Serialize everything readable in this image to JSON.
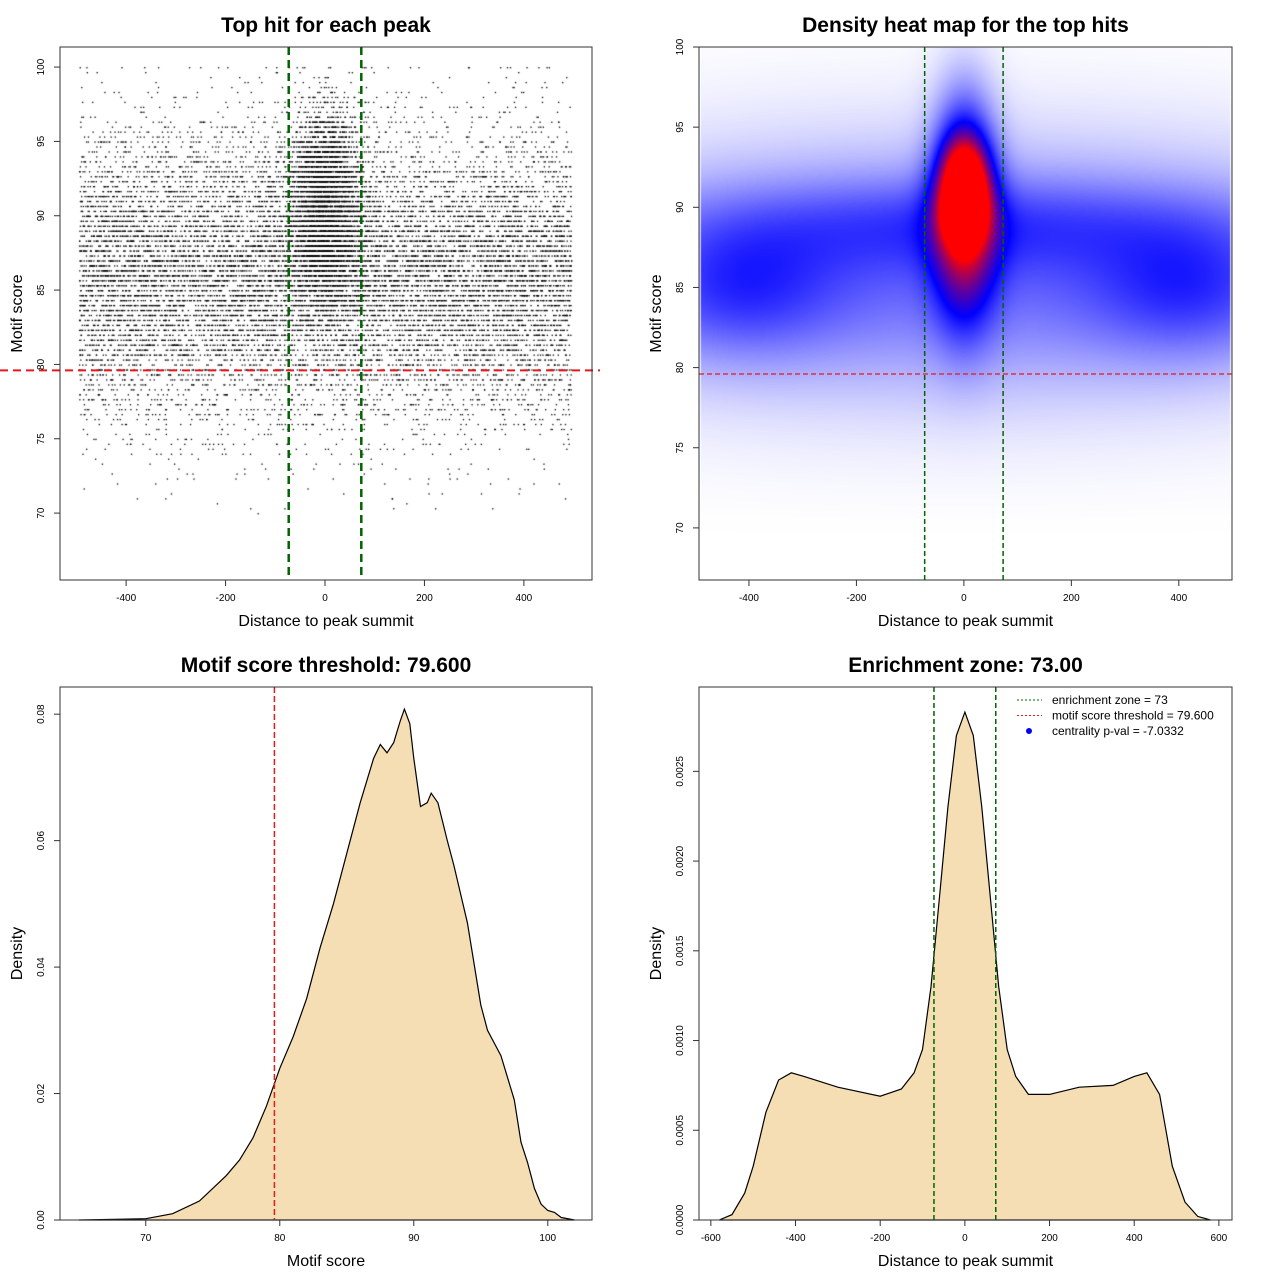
{
  "chart_data": [
    {
      "type": "scatter",
      "title": "Top hit for each peak",
      "xlabel": "Distance to peak summit",
      "ylabel": "Motif score",
      "xlim": [
        -533,
        537
      ],
      "ylim": [
        65.5,
        101.35
      ],
      "xticks": [
        -400,
        -200,
        0,
        200,
        400
      ],
      "yticks": [
        70,
        75,
        80,
        85,
        90,
        95,
        100
      ],
      "vlines": [
        -73,
        73
      ],
      "hline": 79.6,
      "vline_color": "#006400",
      "hline_color": "#e41a1c",
      "point_color": "#000000"
    },
    {
      "type": "heatmap",
      "title": "Density heat map for the top hits",
      "xlabel": "Distance to peak summit",
      "ylabel": "Motif score",
      "xlim": [
        -493,
        499
      ],
      "ylim": [
        66.75,
        100
      ],
      "xticks": [
        -400,
        -200,
        0,
        200,
        400
      ],
      "yticks": [
        70,
        75,
        80,
        85,
        90,
        95,
        100
      ],
      "vlines": [
        -73,
        73
      ],
      "hline": 79.6,
      "colors": [
        "#ffffff",
        "#0000ff",
        "#ff0000"
      ]
    },
    {
      "type": "area",
      "title": "Motif score threshold: 79.600",
      "xlabel": "Motif score",
      "ylabel": "Density",
      "xlim": [
        63.6,
        103.3
      ],
      "ylim": [
        0,
        0.0843
      ],
      "xticks": [
        70,
        80,
        90,
        100
      ],
      "yticks": [
        0,
        0.02,
        0.04,
        0.06,
        0.08
      ],
      "ytick_labels": [
        "0.00",
        "0.02",
        "0.04",
        "0.06",
        "0.08"
      ],
      "vline": 79.6,
      "fill": "#f5deb3",
      "x": [
        65,
        70,
        72,
        74,
        76,
        77,
        78,
        79,
        80,
        81,
        82,
        83,
        84,
        85,
        86,
        87,
        87.5,
        88,
        88.5,
        89,
        89.3,
        89.7,
        90,
        90.5,
        91,
        91.3,
        91.8,
        92.5,
        93,
        94,
        95,
        95.5,
        96.5,
        97.5,
        98,
        98.5,
        99,
        99.5,
        100,
        100.5,
        101,
        102
      ],
      "y": [
        0,
        0.0002,
        0.001,
        0.003,
        0.007,
        0.0095,
        0.013,
        0.018,
        0.024,
        0.029,
        0.035,
        0.043,
        0.05,
        0.058,
        0.066,
        0.073,
        0.0752,
        0.0739,
        0.0755,
        0.079,
        0.0808,
        0.0785,
        0.073,
        0.0654,
        0.066,
        0.0675,
        0.066,
        0.06,
        0.056,
        0.047,
        0.034,
        0.03,
        0.026,
        0.019,
        0.0123,
        0.009,
        0.005,
        0.0025,
        0.0015,
        0.0012,
        0.0004,
        0
      ]
    },
    {
      "type": "area",
      "title": "Enrichment zone: 73.00",
      "xlabel": "Distance to peak summit",
      "ylabel": "Density",
      "xlim": [
        -628,
        631
      ],
      "ylim": [
        0,
        0.00297
      ],
      "xticks": [
        -600,
        -400,
        -200,
        0,
        200,
        400,
        600
      ],
      "yticks": [
        0,
        0.0005,
        0.001,
        0.0015,
        0.002,
        0.0025
      ],
      "ytick_labels": [
        "0.0000",
        "0.0005",
        "0.0010",
        "0.0015",
        "0.0020",
        "0.0025"
      ],
      "vlines": [
        -73,
        73
      ],
      "fill": "#f5deb3",
      "x": [
        -580,
        -550,
        -520,
        -500,
        -470,
        -440,
        -410,
        -380,
        -300,
        -200,
        -150,
        -120,
        -100,
        -80,
        -60,
        -40,
        -20,
        0,
        20,
        40,
        60,
        80,
        100,
        120,
        150,
        200,
        270,
        350,
        400,
        430,
        460,
        490,
        520,
        550,
        580
      ],
      "y": [
        0,
        3e-05,
        0.00015,
        0.0003,
        0.0006,
        0.00078,
        0.00082,
        0.0008,
        0.00074,
        0.00069,
        0.00073,
        0.00082,
        0.00095,
        0.0013,
        0.0018,
        0.0023,
        0.0027,
        0.00283,
        0.0027,
        0.0023,
        0.0018,
        0.0013,
        0.00095,
        0.0008,
        0.0007,
        0.0007,
        0.00074,
        0.00075,
        0.0008,
        0.00082,
        0.0007,
        0.0003,
        0.0001,
        2e-05,
        0
      ],
      "legend": {
        "position": "top-right",
        "items": [
          {
            "label": "enrichment zone = 73",
            "color": "#006400",
            "style": "dotted"
          },
          {
            "label": "motif score threshold = 79.600",
            "color": "#e41a1c",
            "style": "dotted"
          },
          {
            "label": "centrality p-val = -7.0332",
            "color": "#0000ff",
            "style": "point"
          }
        ]
      }
    }
  ]
}
